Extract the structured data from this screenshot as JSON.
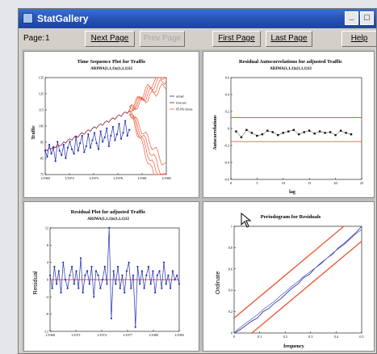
{
  "window": {
    "title": "StatGallery",
    "buttons": {
      "minimize_glyph": "_",
      "maximize_glyph": "□"
    }
  },
  "toolbar": {
    "page_label": "Page:",
    "page_number": "1",
    "next_page": "Next Page",
    "prev_page": "Prev Page",
    "first_page": "First Page",
    "last_page": "Last Page",
    "help": "Help"
  },
  "colors": {
    "actual": "#1f2fb0",
    "forecast": "#8a1a3a",
    "limits": "#ef5a3a",
    "window_title": "#2452b5"
  },
  "chart_data": [
    {
      "type": "line",
      "title": "Time Sequence Plot for Traffic",
      "subtitle": "ARIMA(1,1,1)x(1,1,1)12",
      "xlabel": "",
      "ylabel": "Traffic",
      "x_ticks": [
        "1/1969",
        "1/1972",
        "1/1975",
        "1/1978",
        "1/1981",
        "1/1985"
      ],
      "y_ticks": [
        "75",
        "85",
        "95",
        "105",
        "115",
        "125",
        "135"
      ],
      "ylim": [
        70,
        135
      ],
      "legend": [
        "actual",
        "forecast",
        "95.0% limits"
      ],
      "legend_position": "right",
      "series": [
        {
          "name": "actual",
          "values": [
            86,
            82,
            90,
            84,
            88,
            79,
            92,
            86,
            83,
            90,
            81,
            88,
            92,
            87,
            84,
            95,
            86,
            91,
            96,
            85,
            89,
            97,
            88,
            93,
            98,
            91,
            87,
            99,
            92,
            95,
            101,
            89,
            96,
            102,
            93,
            97,
            104,
            94,
            98,
            106,
            96,
            100
          ]
        },
        {
          "name": "forecast",
          "values": [
            87,
            86,
            88,
            87,
            89,
            88,
            90,
            89,
            90,
            92,
            91,
            93,
            94,
            93,
            95,
            96,
            95,
            97,
            98,
            97,
            99,
            100,
            99,
            101,
            102,
            101,
            103,
            104,
            103,
            105,
            106,
            105,
            107,
            108,
            107,
            109,
            110,
            109,
            111,
            112,
            111,
            113
          ]
        }
      ],
      "limits_range": [
        75,
        130
      ]
    },
    {
      "type": "scatter",
      "title": "Residual Autocorrelations for adjusted Traffic",
      "subtitle": "ARIMA(1,1,1)x(1,1,1)12",
      "xlabel": "lag",
      "ylabel": "Autocorrelations",
      "x_ticks": [
        "0",
        "5",
        "10",
        "15",
        "20",
        "25"
      ],
      "y_ticks": [
        "-0.6",
        "-0.4",
        "-0.2",
        "0",
        "0.2",
        "0.4",
        "0.6"
      ],
      "xlim": [
        0,
        25
      ],
      "ylim": [
        -0.7,
        0.7
      ],
      "values": [
        -0.04,
        -0.12,
        -0.02,
        -0.06,
        -0.1,
        -0.08,
        -0.03,
        -0.05,
        -0.09,
        -0.06,
        -0.04,
        -0.02,
        -0.08,
        -0.05,
        -0.03,
        -0.07,
        -0.04,
        -0.06,
        -0.05,
        -0.09,
        -0.03,
        -0.06,
        -0.08
      ],
      "limits": [
        0.15,
        -0.18
      ]
    },
    {
      "type": "line",
      "title": "Residual Plot for adjusted Traffic",
      "subtitle": "ARIMA(1,1,1)x(1,1,1)12",
      "xlabel": "",
      "ylabel": "Residual",
      "x_ticks": [
        "1/1968",
        "1/1971",
        "1/1974",
        "1/1977",
        "1/1980",
        "1/1983"
      ],
      "y_ticks": [
        "-12",
        "-8",
        "-4",
        "0",
        "4",
        "8",
        "12"
      ],
      "ylim": [
        -12,
        12
      ],
      "values": [
        1,
        -2,
        3,
        -1,
        2,
        -3,
        4,
        0,
        -2,
        1,
        3,
        -1,
        2,
        -2,
        5,
        -3,
        1,
        2,
        -1,
        3,
        -4,
        2,
        1,
        -2,
        0,
        3,
        -1,
        12,
        -9,
        2,
        -1,
        3,
        -2,
        1,
        -3,
        2,
        4,
        -2,
        1,
        -11,
        3,
        -1,
        2,
        -2,
        1,
        3,
        -1,
        2,
        -3,
        1,
        2,
        -2,
        4,
        -1,
        1,
        -2,
        2,
        0,
        1,
        -1
      ]
    },
    {
      "type": "line",
      "title": "Periodogram for Residuals",
      "subtitle": "",
      "xlabel": "frequency",
      "ylabel": "Ordinate",
      "x_ticks": [
        "0",
        "0.1",
        "0.2",
        "0.3",
        "0.4",
        "0.5"
      ],
      "y_ticks": [
        "0",
        "0.2",
        "0.4",
        "0.6",
        "0.8",
        "1"
      ],
      "xlim": [
        0,
        0.5
      ],
      "ylim": [
        0,
        1
      ],
      "series": [
        {
          "values": [
            0,
            0.03,
            0.07,
            0.11,
            0.14,
            0.2,
            0.23,
            0.28,
            0.32,
            0.37,
            0.42,
            0.46,
            0.52,
            0.55,
            0.61,
            0.65,
            0.7,
            0.74,
            0.8,
            0.84,
            0.89,
            0.94,
            1.0
          ]
        },
        {
          "values": [
            0,
            0.05,
            0.09,
            0.13,
            0.17,
            0.22,
            0.26,
            0.3,
            0.35,
            0.39,
            0.44,
            0.48,
            0.53,
            0.57,
            0.61,
            0.66,
            0.7,
            0.75,
            0.79,
            0.83,
            0.88,
            0.93,
            0.97
          ]
        }
      ],
      "limit_offset": 0.14
    }
  ]
}
